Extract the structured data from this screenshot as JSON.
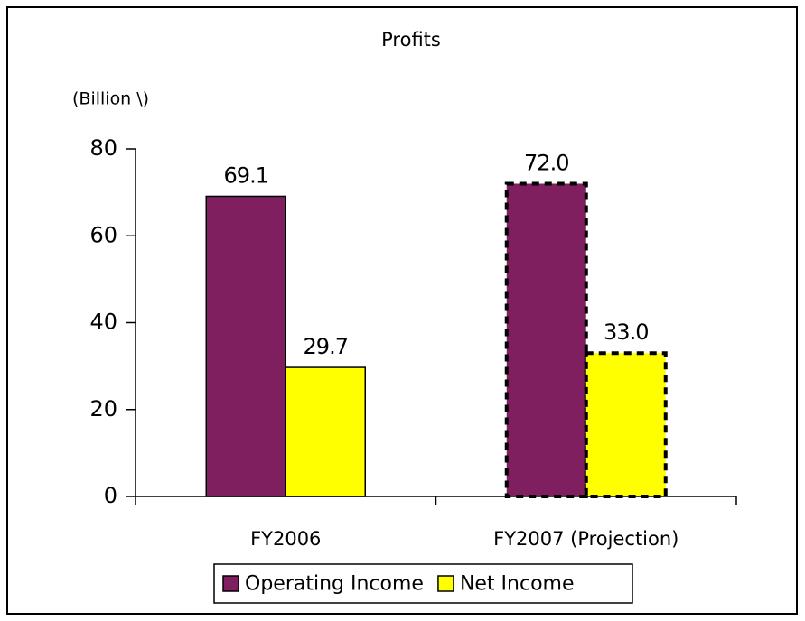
{
  "chart_data": {
    "type": "bar",
    "title": "Profits",
    "unit_label": "(Billion \\)",
    "categories": [
      "FY2006",
      "FY2007 (Projection)"
    ],
    "outline_dashed": [
      false,
      true
    ],
    "series": [
      {
        "name": "Operating Income",
        "color": "#7f1f5f",
        "values": [
          69.1,
          72.0
        ],
        "value_labels": [
          "69.1",
          "72.0"
        ]
      },
      {
        "name": "Net Income",
        "color": "#ffff00",
        "values": [
          29.7,
          33.0
        ],
        "value_labels": [
          "29.7",
          "33.0"
        ]
      }
    ],
    "ylim": [
      0,
      80
    ],
    "yticks": [
      0,
      20,
      40,
      60,
      80
    ],
    "grid": false,
    "legend": "bottom"
  }
}
